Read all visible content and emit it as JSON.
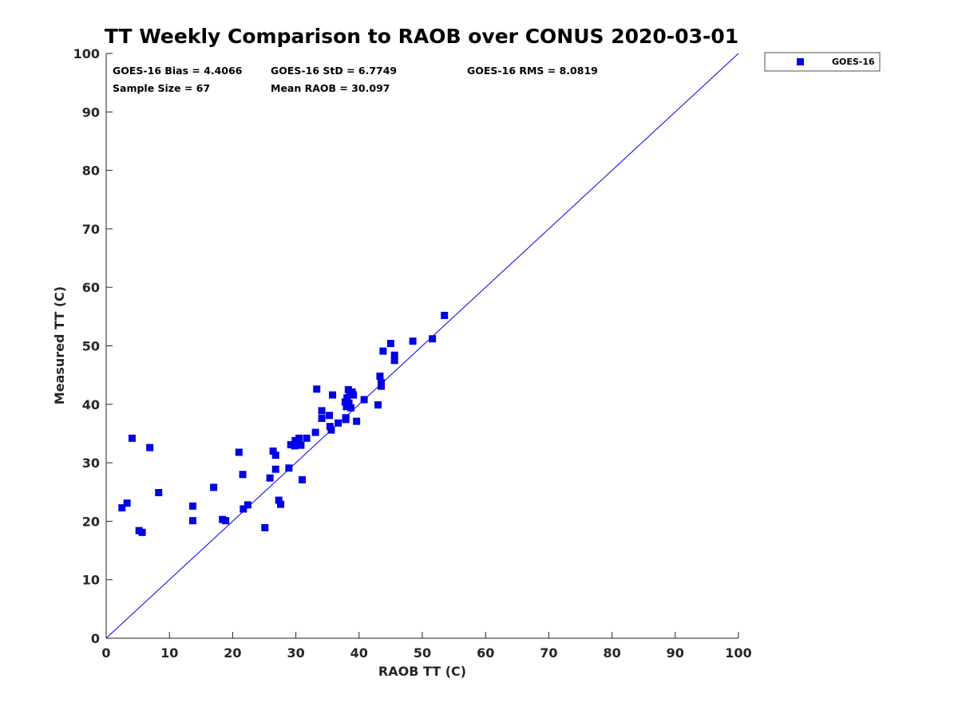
{
  "chart_data": {
    "type": "scatter",
    "title": "TT Weekly Comparison to RAOB over CONUS 2020-03-01",
    "xlabel": "RAOB TT (C)",
    "ylabel": "Measured TT (C)",
    "xlim": [
      0,
      100
    ],
    "ylim": [
      0,
      100
    ],
    "xticks": [
      0,
      10,
      20,
      30,
      40,
      50,
      60,
      70,
      80,
      90,
      100
    ],
    "yticks": [
      0,
      10,
      20,
      30,
      40,
      50,
      60,
      70,
      80,
      90,
      100
    ],
    "grid": false,
    "legend_position": "outside-top-right",
    "reference_line": {
      "x": [
        0,
        100
      ],
      "y": [
        0,
        100
      ]
    },
    "colors": {
      "series": "#0000e6",
      "line": "#0000e6",
      "axis": "#262626"
    },
    "stats": {
      "bias": "GOES-16 Bias = 4.4066",
      "std": "GOES-16 StD = 6.7749",
      "rms": "GOES-16 RMS = 8.0819",
      "sample_size": "Sample Size = 67",
      "mean_raob": "Mean RAOB = 30.097"
    },
    "series": [
      {
        "name": "GOES-16",
        "marker": "square",
        "color": "#0000e6",
        "x": [
          2.5,
          3.3,
          4.1,
          5.2,
          5.7,
          6.9,
          8.3,
          13.7,
          13.7,
          17.0,
          18.4,
          18.9,
          21.0,
          21.6,
          21.7,
          22.4,
          25.1,
          25.9,
          26.4,
          26.8,
          26.8,
          27.3,
          27.6,
          28.9,
          29.2,
          29.8,
          30.1,
          30.5,
          30.8,
          31.0,
          31.7,
          33.1,
          33.3,
          34.1,
          34.1,
          35.3,
          35.4,
          35.6,
          35.8,
          36.7,
          37.8,
          37.9,
          38.0,
          38.1,
          38.3,
          38.5,
          38.7,
          38.8,
          38.9,
          39.1,
          39.6,
          40.8,
          43.0,
          43.3,
          43.5,
          43.5,
          43.8,
          45.0,
          45.6,
          45.6,
          48.5,
          51.6,
          53.5,
          37.9,
          38.4,
          29.9,
          30.4
        ],
        "y": [
          22.3,
          23.1,
          34.2,
          18.4,
          18.1,
          32.6,
          24.9,
          22.6,
          20.1,
          25.8,
          20.3,
          20.1,
          31.8,
          28.0,
          22.1,
          22.8,
          18.9,
          27.4,
          32.0,
          31.3,
          28.9,
          23.6,
          22.9,
          29.1,
          33.1,
          32.9,
          33.2,
          34.2,
          33.0,
          27.1,
          34.2,
          35.2,
          42.6,
          38.9,
          37.6,
          38.1,
          36.2,
          35.6,
          41.6,
          36.8,
          40.4,
          37.4,
          39.6,
          41.1,
          42.5,
          41.9,
          39.4,
          41.6,
          42.1,
          41.6,
          37.1,
          40.8,
          39.9,
          44.8,
          43.7,
          43.1,
          49.1,
          50.4,
          48.4,
          47.5,
          50.8,
          51.2,
          55.2,
          37.7,
          40.2,
          33.8,
          33.5
        ]
      }
    ]
  }
}
